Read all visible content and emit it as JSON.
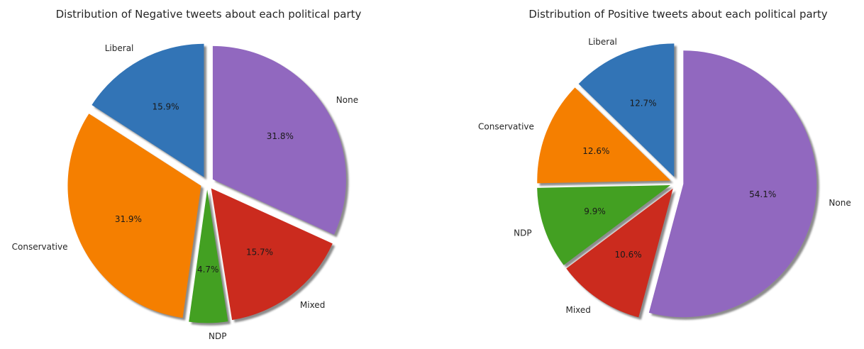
{
  "chart_data": [
    {
      "type": "pie",
      "title": "Distribution of Negative tweets about each political party",
      "labels": [
        "Liberal",
        "Conservative",
        "NDP",
        "Mixed",
        "None"
      ],
      "values": [
        15.9,
        31.9,
        4.7,
        15.7,
        31.8
      ],
      "value_labels": [
        "15.9%",
        "31.9%",
        "4.7%",
        "15.7%",
        "31.8%"
      ],
      "colors": [
        "#3274b6",
        "#f57f00",
        "#43a022",
        "#cb2b1e",
        "#9168bf"
      ],
      "start_angle_deg": 90,
      "direction": "counterclockwise",
      "exploded": true,
      "shadow": true
    },
    {
      "type": "pie",
      "title": "Distribution of Positive tweets about each political party",
      "labels": [
        "Liberal",
        "Conservative",
        "NDP",
        "Mixed",
        "None"
      ],
      "values": [
        12.7,
        12.6,
        9.9,
        10.6,
        54.1
      ],
      "value_labels": [
        "12.7%",
        "12.6%",
        "9.9%",
        "10.6%",
        "54.1%"
      ],
      "colors": [
        "#3274b6",
        "#f57f00",
        "#43a022",
        "#cb2b1e",
        "#9168bf"
      ],
      "start_angle_deg": 90,
      "direction": "counterclockwise",
      "exploded": true,
      "shadow": true
    }
  ]
}
